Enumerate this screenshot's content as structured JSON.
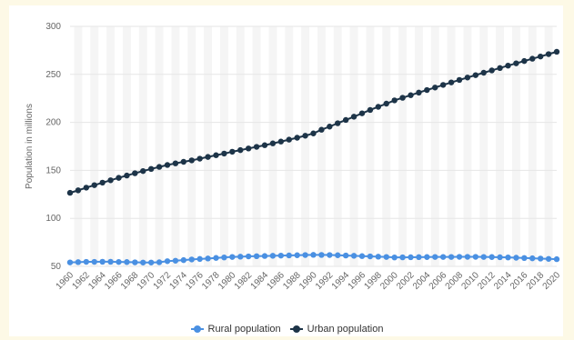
{
  "chart_data": {
    "type": "line",
    "ylabel": "Population in millions",
    "ylim": [
      50,
      300
    ],
    "yticks": [
      50,
      100,
      150,
      200,
      250,
      300
    ],
    "x_ticks": [
      "1960",
      "1962",
      "1964",
      "1966",
      "1968",
      "1970",
      "1972",
      "1974",
      "1976",
      "1978",
      "1980",
      "1982",
      "1984",
      "1986",
      "1988",
      "1990",
      "1992",
      "1994",
      "1996",
      "1998",
      "2000",
      "2002",
      "2004",
      "2006",
      "2008",
      "2010",
      "2012",
      "2014",
      "2016",
      "2018",
      "2020"
    ],
    "x": [
      1960,
      1961,
      1962,
      1963,
      1964,
      1965,
      1966,
      1967,
      1968,
      1969,
      1970,
      1971,
      1972,
      1973,
      1974,
      1975,
      1976,
      1977,
      1978,
      1979,
      1980,
      1981,
      1982,
      1983,
      1984,
      1985,
      1986,
      1987,
      1988,
      1989,
      1990,
      1991,
      1992,
      1993,
      1994,
      1995,
      1996,
      1997,
      1998,
      1999,
      2000,
      2001,
      2002,
      2003,
      2004,
      2005,
      2006,
      2007,
      2008,
      2009,
      2010,
      2011,
      2012,
      2013,
      2014,
      2015,
      2016,
      2017,
      2018,
      2019,
      2020
    ],
    "grid": true,
    "legend_position": "bottom-center",
    "series": [
      {
        "name": "Rural population",
        "color": "#4a90e2",
        "values": [
          54.1,
          54.4,
          54.7,
          54.7,
          54.8,
          54.8,
          54.6,
          54.5,
          54.2,
          54.0,
          54.0,
          54.3,
          55.4,
          55.9,
          56.5,
          57.2,
          57.7,
          58.2,
          58.8,
          59.3,
          59.8,
          60.1,
          60.4,
          60.6,
          60.8,
          61.0,
          61.2,
          61.4,
          61.6,
          61.8,
          62.0,
          61.9,
          61.8,
          61.6,
          61.3,
          61.0,
          60.7,
          60.4,
          60.1,
          59.8,
          59.3,
          59.4,
          59.5,
          59.6,
          59.7,
          59.8,
          59.8,
          59.8,
          59.9,
          59.9,
          59.9,
          59.8,
          59.7,
          59.5,
          59.3,
          59.0,
          58.7,
          58.4,
          58.1,
          57.8,
          57.5
        ]
      },
      {
        "name": "Urban population",
        "color": "#1d3448",
        "values": [
          126.6,
          129.2,
          132.0,
          134.6,
          137.2,
          139.7,
          142.2,
          144.6,
          147.0,
          149.3,
          151.5,
          153.6,
          155.6,
          157.3,
          158.9,
          160.4,
          162.2,
          164.0,
          165.8,
          167.5,
          169.4,
          171.1,
          172.8,
          174.5,
          176.2,
          178.1,
          180.0,
          182.0,
          184.0,
          186.1,
          188.5,
          192.3,
          195.6,
          199.1,
          202.5,
          205.9,
          209.4,
          212.9,
          216.2,
          219.5,
          222.9,
          225.6,
          228.3,
          231.0,
          233.7,
          236.3,
          239.0,
          241.6,
          244.2,
          246.7,
          249.2,
          251.7,
          254.1,
          256.6,
          259.1,
          261.5,
          263.9,
          266.3,
          268.6,
          271.1,
          273.5
        ]
      }
    ]
  }
}
